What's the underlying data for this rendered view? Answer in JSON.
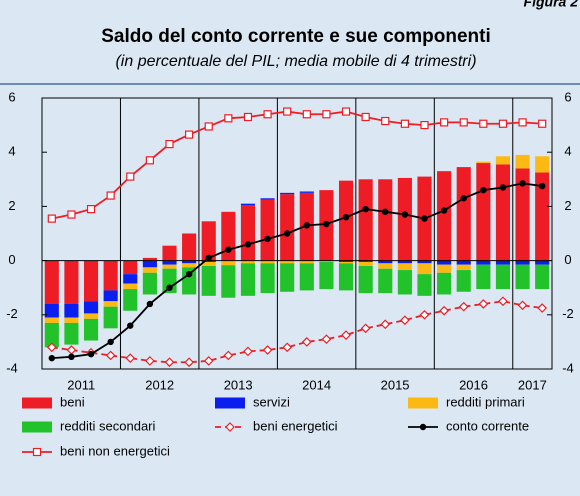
{
  "chart_data": {
    "type": "bar",
    "figure_label": "Figura 2",
    "title": "Saldo del conto corrente e sue componenti",
    "subtitle": "(in percentuale del PIL; media mobile di 4 trimestri)",
    "categories": [
      null,
      null,
      null,
      null,
      null,
      null,
      null,
      null,
      null,
      null,
      null,
      null,
      null,
      null,
      null,
      null,
      null,
      null,
      null,
      null,
      null,
      null,
      null,
      null,
      null,
      null
    ],
    "years": [
      "2011",
      "2012",
      "2013",
      "2014",
      "2015",
      "2016",
      "2017"
    ],
    "ylim": [
      -4,
      6
    ],
    "yticks": [
      -4,
      -2,
      0,
      2,
      4,
      6
    ],
    "y2lim": [
      -4,
      6
    ],
    "y2ticks": [
      -4,
      -2,
      0,
      2,
      4,
      6
    ],
    "grid": false,
    "legend": "bottom",
    "series": [
      {
        "name": "beni",
        "kind": "bar",
        "color": "#ee1c25",
        "values": [
          -1.6,
          -1.6,
          -1.5,
          -1.1,
          -0.5,
          0.1,
          0.55,
          1.0,
          1.45,
          1.8,
          2.05,
          2.25,
          2.45,
          2.5,
          2.6,
          2.95,
          3.0,
          3.0,
          3.05,
          3.1,
          3.3,
          3.45,
          3.6,
          3.55,
          3.4,
          3.25
        ]
      },
      {
        "name": "servizi",
        "kind": "bar",
        "color": "#0a1ef0",
        "values": [
          -0.5,
          -0.5,
          -0.45,
          -0.4,
          -0.35,
          -0.25,
          -0.15,
          -0.1,
          -0.05,
          -0.02,
          0.05,
          0.05,
          0.05,
          0.05,
          0,
          -0.05,
          -0.05,
          -0.1,
          -0.1,
          -0.1,
          -0.15,
          -0.15,
          -0.15,
          -0.15,
          -0.15,
          -0.15
        ]
      },
      {
        "name": "redditi primari",
        "kind": "bar",
        "color": "#fdb913",
        "values": [
          -0.2,
          -0.2,
          -0.2,
          -0.2,
          -0.2,
          -0.2,
          -0.15,
          -0.15,
          -0.15,
          -0.15,
          -0.1,
          -0.1,
          -0.1,
          -0.1,
          -0.05,
          -0.05,
          -0.15,
          -0.2,
          -0.25,
          -0.4,
          -0.3,
          -0.2,
          0.05,
          0.3,
          0.5,
          0.6
        ]
      },
      {
        "name": "redditi secondari",
        "kind": "bar",
        "color": "#22c22a",
        "values": [
          -0.9,
          -0.8,
          -0.8,
          -0.8,
          -0.8,
          -0.8,
          -0.9,
          -1.0,
          -1.1,
          -1.2,
          -1.2,
          -1.1,
          -1.05,
          -1.0,
          -1.0,
          -1.0,
          -1.0,
          -0.9,
          -0.9,
          -0.8,
          -0.8,
          -0.8,
          -0.9,
          -0.9,
          -0.9,
          -0.9
        ]
      },
      {
        "name": "beni energetici",
        "kind": "line",
        "color": "#ee1c25",
        "dash": true,
        "marker": "diamond",
        "values": [
          -3.2,
          -3.3,
          -3.4,
          -3.5,
          -3.6,
          -3.7,
          -3.75,
          -3.75,
          -3.7,
          -3.5,
          -3.35,
          -3.3,
          -3.2,
          -3.0,
          -2.9,
          -2.75,
          -2.5,
          -2.35,
          -2.2,
          -2.0,
          -1.85,
          -1.7,
          -1.6,
          -1.5,
          -1.65,
          -1.75
        ]
      },
      {
        "name": "conto corrente",
        "kind": "line",
        "color": "#000000",
        "dash": false,
        "marker": "dot",
        "values": [
          -3.6,
          -3.55,
          -3.45,
          -3.0,
          -2.4,
          -1.6,
          -1.0,
          -0.5,
          0.1,
          0.4,
          0.6,
          0.8,
          1.0,
          1.3,
          1.35,
          1.6,
          1.9,
          1.8,
          1.7,
          1.55,
          1.85,
          2.3,
          2.6,
          2.7,
          2.85,
          2.75
        ]
      },
      {
        "name": "beni non energetici",
        "kind": "line",
        "color": "#ee1c25",
        "dash": false,
        "marker": "square",
        "values": [
          1.55,
          1.7,
          1.9,
          2.4,
          3.1,
          3.7,
          4.3,
          4.65,
          4.95,
          5.25,
          5.3,
          5.4,
          5.5,
          5.4,
          5.4,
          5.5,
          5.3,
          5.15,
          5.05,
          5.0,
          5.1,
          5.1,
          5.05,
          5.05,
          5.1,
          5.05
        ]
      }
    ]
  }
}
